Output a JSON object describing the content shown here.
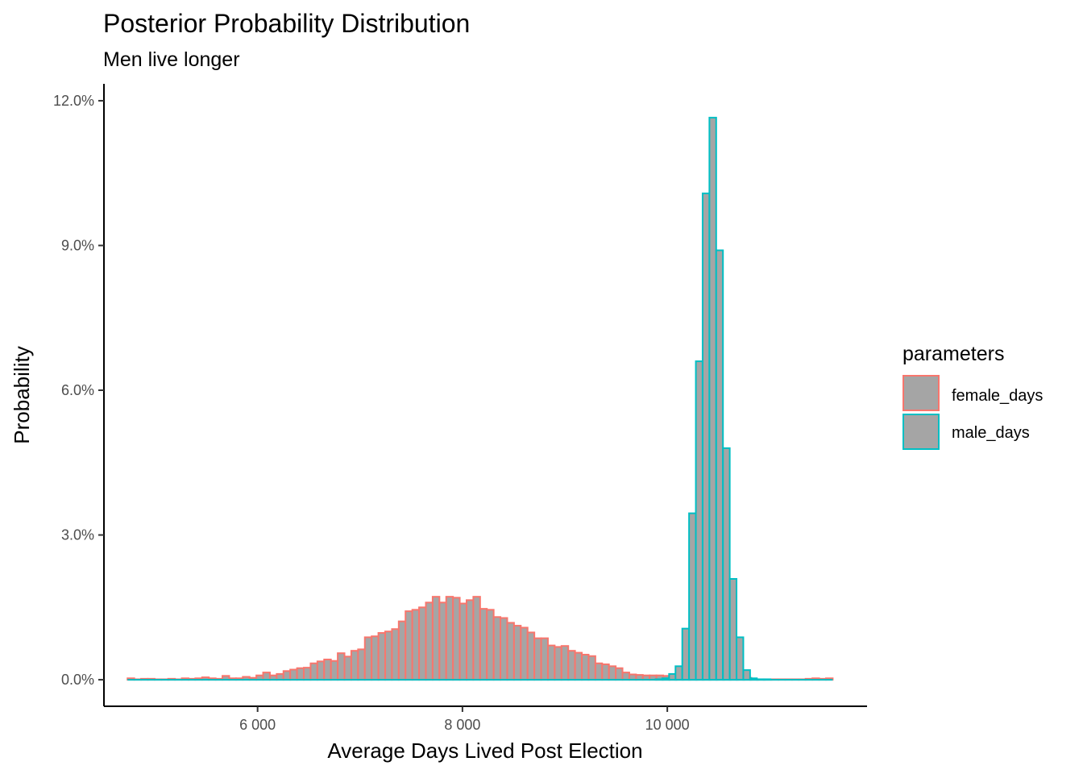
{
  "chart_data": {
    "type": "bar",
    "title": "Posterior Probability Distribution",
    "subtitle": "Men live longer",
    "xlabel": "Average Days Lived Post Election",
    "ylabel": "Probability",
    "xlim": [
      4500,
      11950
    ],
    "ylim": [
      -0.0055,
      0.1235
    ],
    "x_ticks": [
      6000,
      8000,
      10000
    ],
    "x_tick_labels": [
      "6 000",
      "8 000",
      "10 000"
    ],
    "y_ticks": [
      0,
      0.03,
      0.06,
      0.09,
      0.12
    ],
    "y_tick_labels": [
      "0.0%",
      "3.0%",
      "6.0%",
      "9.0%",
      "12.0%"
    ],
    "grid": false,
    "bar_fill": "#a5a5a5",
    "bin_start": 4730,
    "bin_width": 66.2,
    "legend": {
      "title": "parameters",
      "position": "right"
    },
    "series": [
      {
        "name": "female_days",
        "color": "#f8766d",
        "values": [
          0.0003,
          0.0001,
          0.0002,
          0.0002,
          0.0001,
          0.0001,
          0.0002,
          0.0001,
          0.0003,
          0.0002,
          0.0003,
          0.0005,
          0.0003,
          0.0002,
          0.0008,
          0.0003,
          0.0003,
          0.0006,
          0.0004,
          0.0009,
          0.0015,
          0.0009,
          0.0012,
          0.0018,
          0.0021,
          0.0024,
          0.0025,
          0.0034,
          0.0038,
          0.0042,
          0.0039,
          0.0055,
          0.0048,
          0.006,
          0.0063,
          0.0088,
          0.009,
          0.0097,
          0.01,
          0.0105,
          0.0121,
          0.0142,
          0.0145,
          0.015,
          0.016,
          0.0172,
          0.016,
          0.0172,
          0.017,
          0.0158,
          0.0165,
          0.0172,
          0.0147,
          0.0145,
          0.013,
          0.0128,
          0.0118,
          0.0112,
          0.0108,
          0.0098,
          0.0086,
          0.0086,
          0.0071,
          0.0068,
          0.007,
          0.006,
          0.0056,
          0.0052,
          0.0049,
          0.0034,
          0.0032,
          0.0028,
          0.0024,
          0.0015,
          0.0011,
          0.001,
          0.0009,
          0.0009,
          0.0009,
          0.0008,
          0.0006,
          0.0004,
          0.0003,
          0.0002,
          0.0002,
          0.0002,
          0.0001,
          0.0001,
          0.0002,
          0.0003,
          0.0001,
          0.0004,
          0.0001,
          0.0001,
          0.0001,
          0.0001,
          0.0001,
          0.0001,
          0.0001,
          0.0001,
          0.0002,
          0.0003,
          0.0002,
          0.0003
        ]
      },
      {
        "name": "male_days",
        "color": "#00bfc4",
        "bins": [
          {
            "start": 9885,
            "values": [
              0.0001,
              0.0003,
              0.0012
            ]
          },
          {
            "start": 10080,
            "values": [
              0.0028,
              0.0106,
              0.0345,
              0.066,
              0.1008,
              0.1165,
              0.089,
              0.048,
              0.0209,
              0.0088,
              0.002,
              0.0003,
              0.0001,
              0.0001
            ]
          }
        ]
      }
    ]
  }
}
